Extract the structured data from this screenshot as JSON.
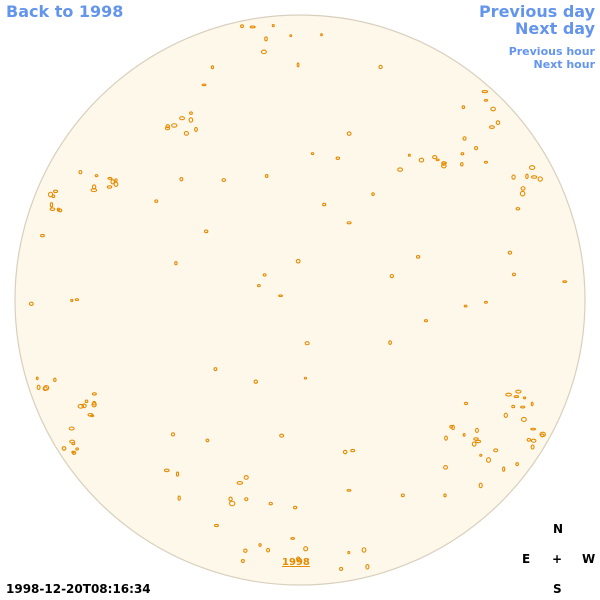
{
  "navigation": {
    "back": "Back to 1998",
    "previous_day": "Previous day",
    "next_day": "Next day",
    "previous_hour": "Previous hour",
    "next_hour": "Next hour"
  },
  "disk_link": "1998",
  "compass": {
    "north": "N",
    "east": "E",
    "center": "+",
    "west": "W",
    "south": "S"
  },
  "timestamp": "1998-12-20T08:16:34"
}
